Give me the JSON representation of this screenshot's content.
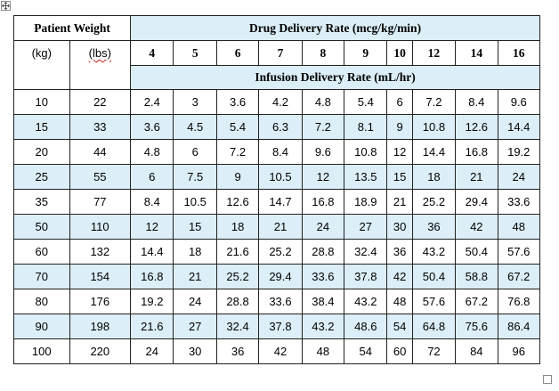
{
  "headers": {
    "patient_weight": "Patient Weight",
    "kg": "(kg)",
    "lbs": "(lbs)",
    "drug_rate": "Drug Delivery Rate (mcg/kg/min)",
    "infusion_rate": "Infusion Delivery Rate (mL/hr)",
    "rates": [
      "4",
      "5",
      "6",
      "7",
      "8",
      "9",
      "10",
      "12",
      "14",
      "16"
    ]
  },
  "rows": [
    {
      "kg": "10",
      "lbs": "22",
      "values": [
        "2.4",
        "3",
        "3.6",
        "4.2",
        "4.8",
        "5.4",
        "6",
        "7.2",
        "8.4",
        "9.6"
      ]
    },
    {
      "kg": "15",
      "lbs": "33",
      "values": [
        "3.6",
        "4.5",
        "5.4",
        "6.3",
        "7.2",
        "8.1",
        "9",
        "10.8",
        "12.6",
        "14.4"
      ]
    },
    {
      "kg": "20",
      "lbs": "44",
      "values": [
        "4.8",
        "6",
        "7.2",
        "8.4",
        "9.6",
        "10.8",
        "12",
        "14.4",
        "16.8",
        "19.2"
      ]
    },
    {
      "kg": "25",
      "lbs": "55",
      "values": [
        "6",
        "7.5",
        "9",
        "10.5",
        "12",
        "13.5",
        "15",
        "18",
        "21",
        "24"
      ]
    },
    {
      "kg": "35",
      "lbs": "77",
      "values": [
        "8.4",
        "10.5",
        "12.6",
        "14.7",
        "16.8",
        "18.9",
        "21",
        "25.2",
        "29.4",
        "33.6"
      ]
    },
    {
      "kg": "50",
      "lbs": "110",
      "values": [
        "12",
        "15",
        "18",
        "21",
        "24",
        "27",
        "30",
        "36",
        "42",
        "48"
      ]
    },
    {
      "kg": "60",
      "lbs": "132",
      "values": [
        "14.4",
        "18",
        "21.6",
        "25.2",
        "28.8",
        "32.4",
        "36",
        "43.2",
        "50.4",
        "57.6"
      ]
    },
    {
      "kg": "70",
      "lbs": "154",
      "values": [
        "16.8",
        "21",
        "25.2",
        "29.4",
        "33.6",
        "37.8",
        "42",
        "50.4",
        "58.8",
        "67.2"
      ]
    },
    {
      "kg": "80",
      "lbs": "176",
      "values": [
        "19.2",
        "24",
        "28.8",
        "33.6",
        "38.4",
        "43.2",
        "48",
        "57.6",
        "67.2",
        "76.8"
      ]
    },
    {
      "kg": "90",
      "lbs": "198",
      "values": [
        "21.6",
        "27",
        "32.4",
        "37.8",
        "43.2",
        "48.6",
        "54",
        "64.8",
        "75.6",
        "86.4"
      ]
    },
    {
      "kg": "100",
      "lbs": "220",
      "values": [
        "24",
        "30",
        "36",
        "42",
        "48",
        "54",
        "60",
        "72",
        "84",
        "96"
      ]
    }
  ]
}
